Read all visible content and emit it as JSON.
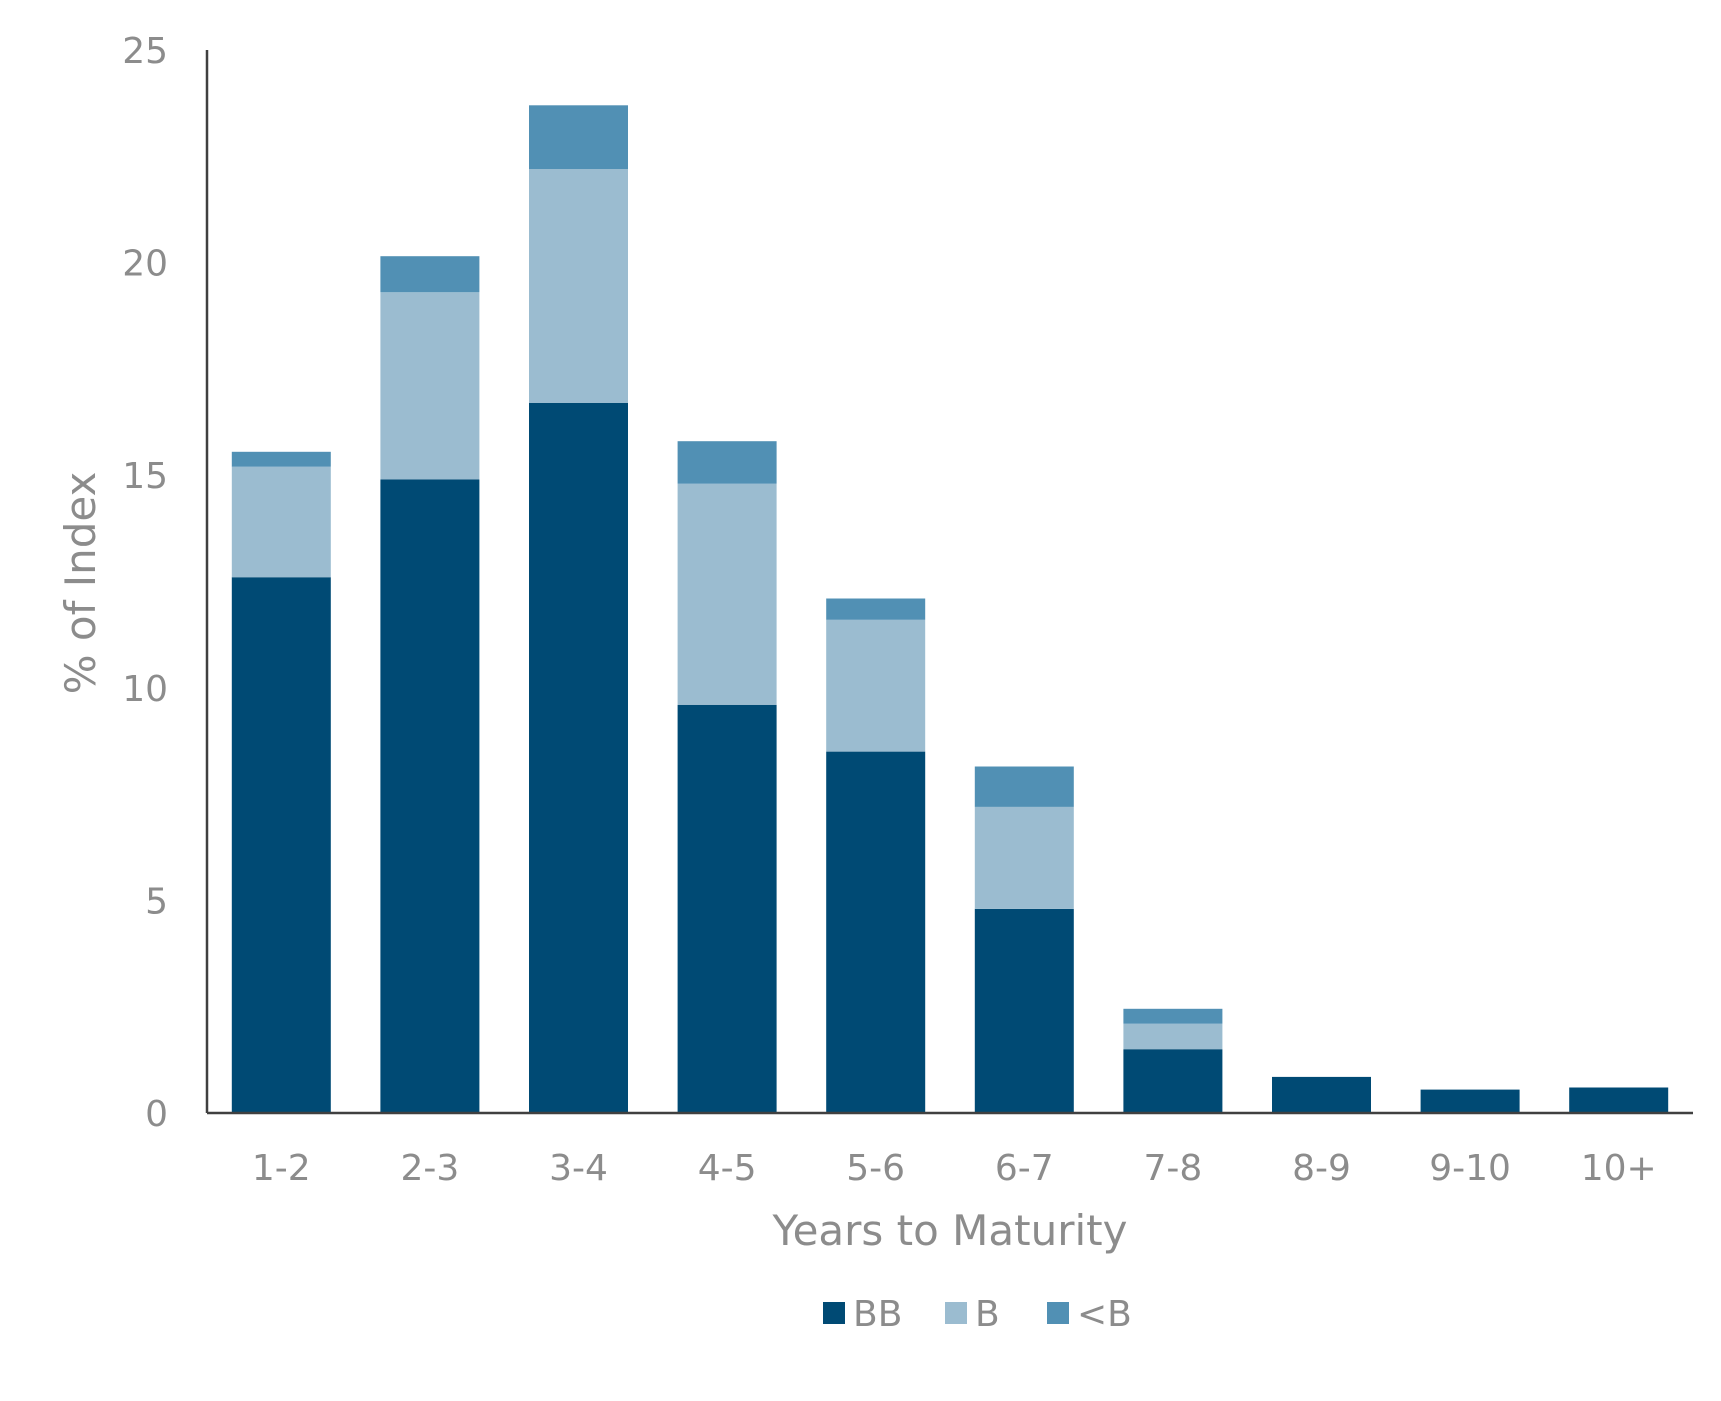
{
  "chart_data": {
    "type": "bar",
    "stacked": true,
    "categories": [
      "1-2",
      "2-3",
      "3-4",
      "4-5",
      "5-6",
      "6-7",
      "7-8",
      "8-9",
      "9-10",
      "10+"
    ],
    "series": [
      {
        "name": "BB",
        "color": "#004a74",
        "values": [
          12.6,
          14.9,
          16.7,
          9.6,
          8.5,
          4.8,
          1.5,
          0.85,
          0.55,
          0.6
        ]
      },
      {
        "name": "B",
        "color": "#9bbcd0",
        "values": [
          2.6,
          4.4,
          5.5,
          5.2,
          3.1,
          2.4,
          0.6,
          0,
          0,
          0
        ]
      },
      {
        "name": "<B",
        "color": "#5190b4",
        "values": [
          0.35,
          0.85,
          1.5,
          1.0,
          0.5,
          0.95,
          0.35,
          0,
          0,
          0
        ]
      }
    ],
    "title": "",
    "xlabel": "Years to Maturity",
    "ylabel": "% of Index",
    "ylim": [
      0,
      25
    ],
    "yticks": [
      0,
      5,
      10,
      15,
      20,
      25
    ],
    "grid": false,
    "legend_position": "bottom"
  }
}
